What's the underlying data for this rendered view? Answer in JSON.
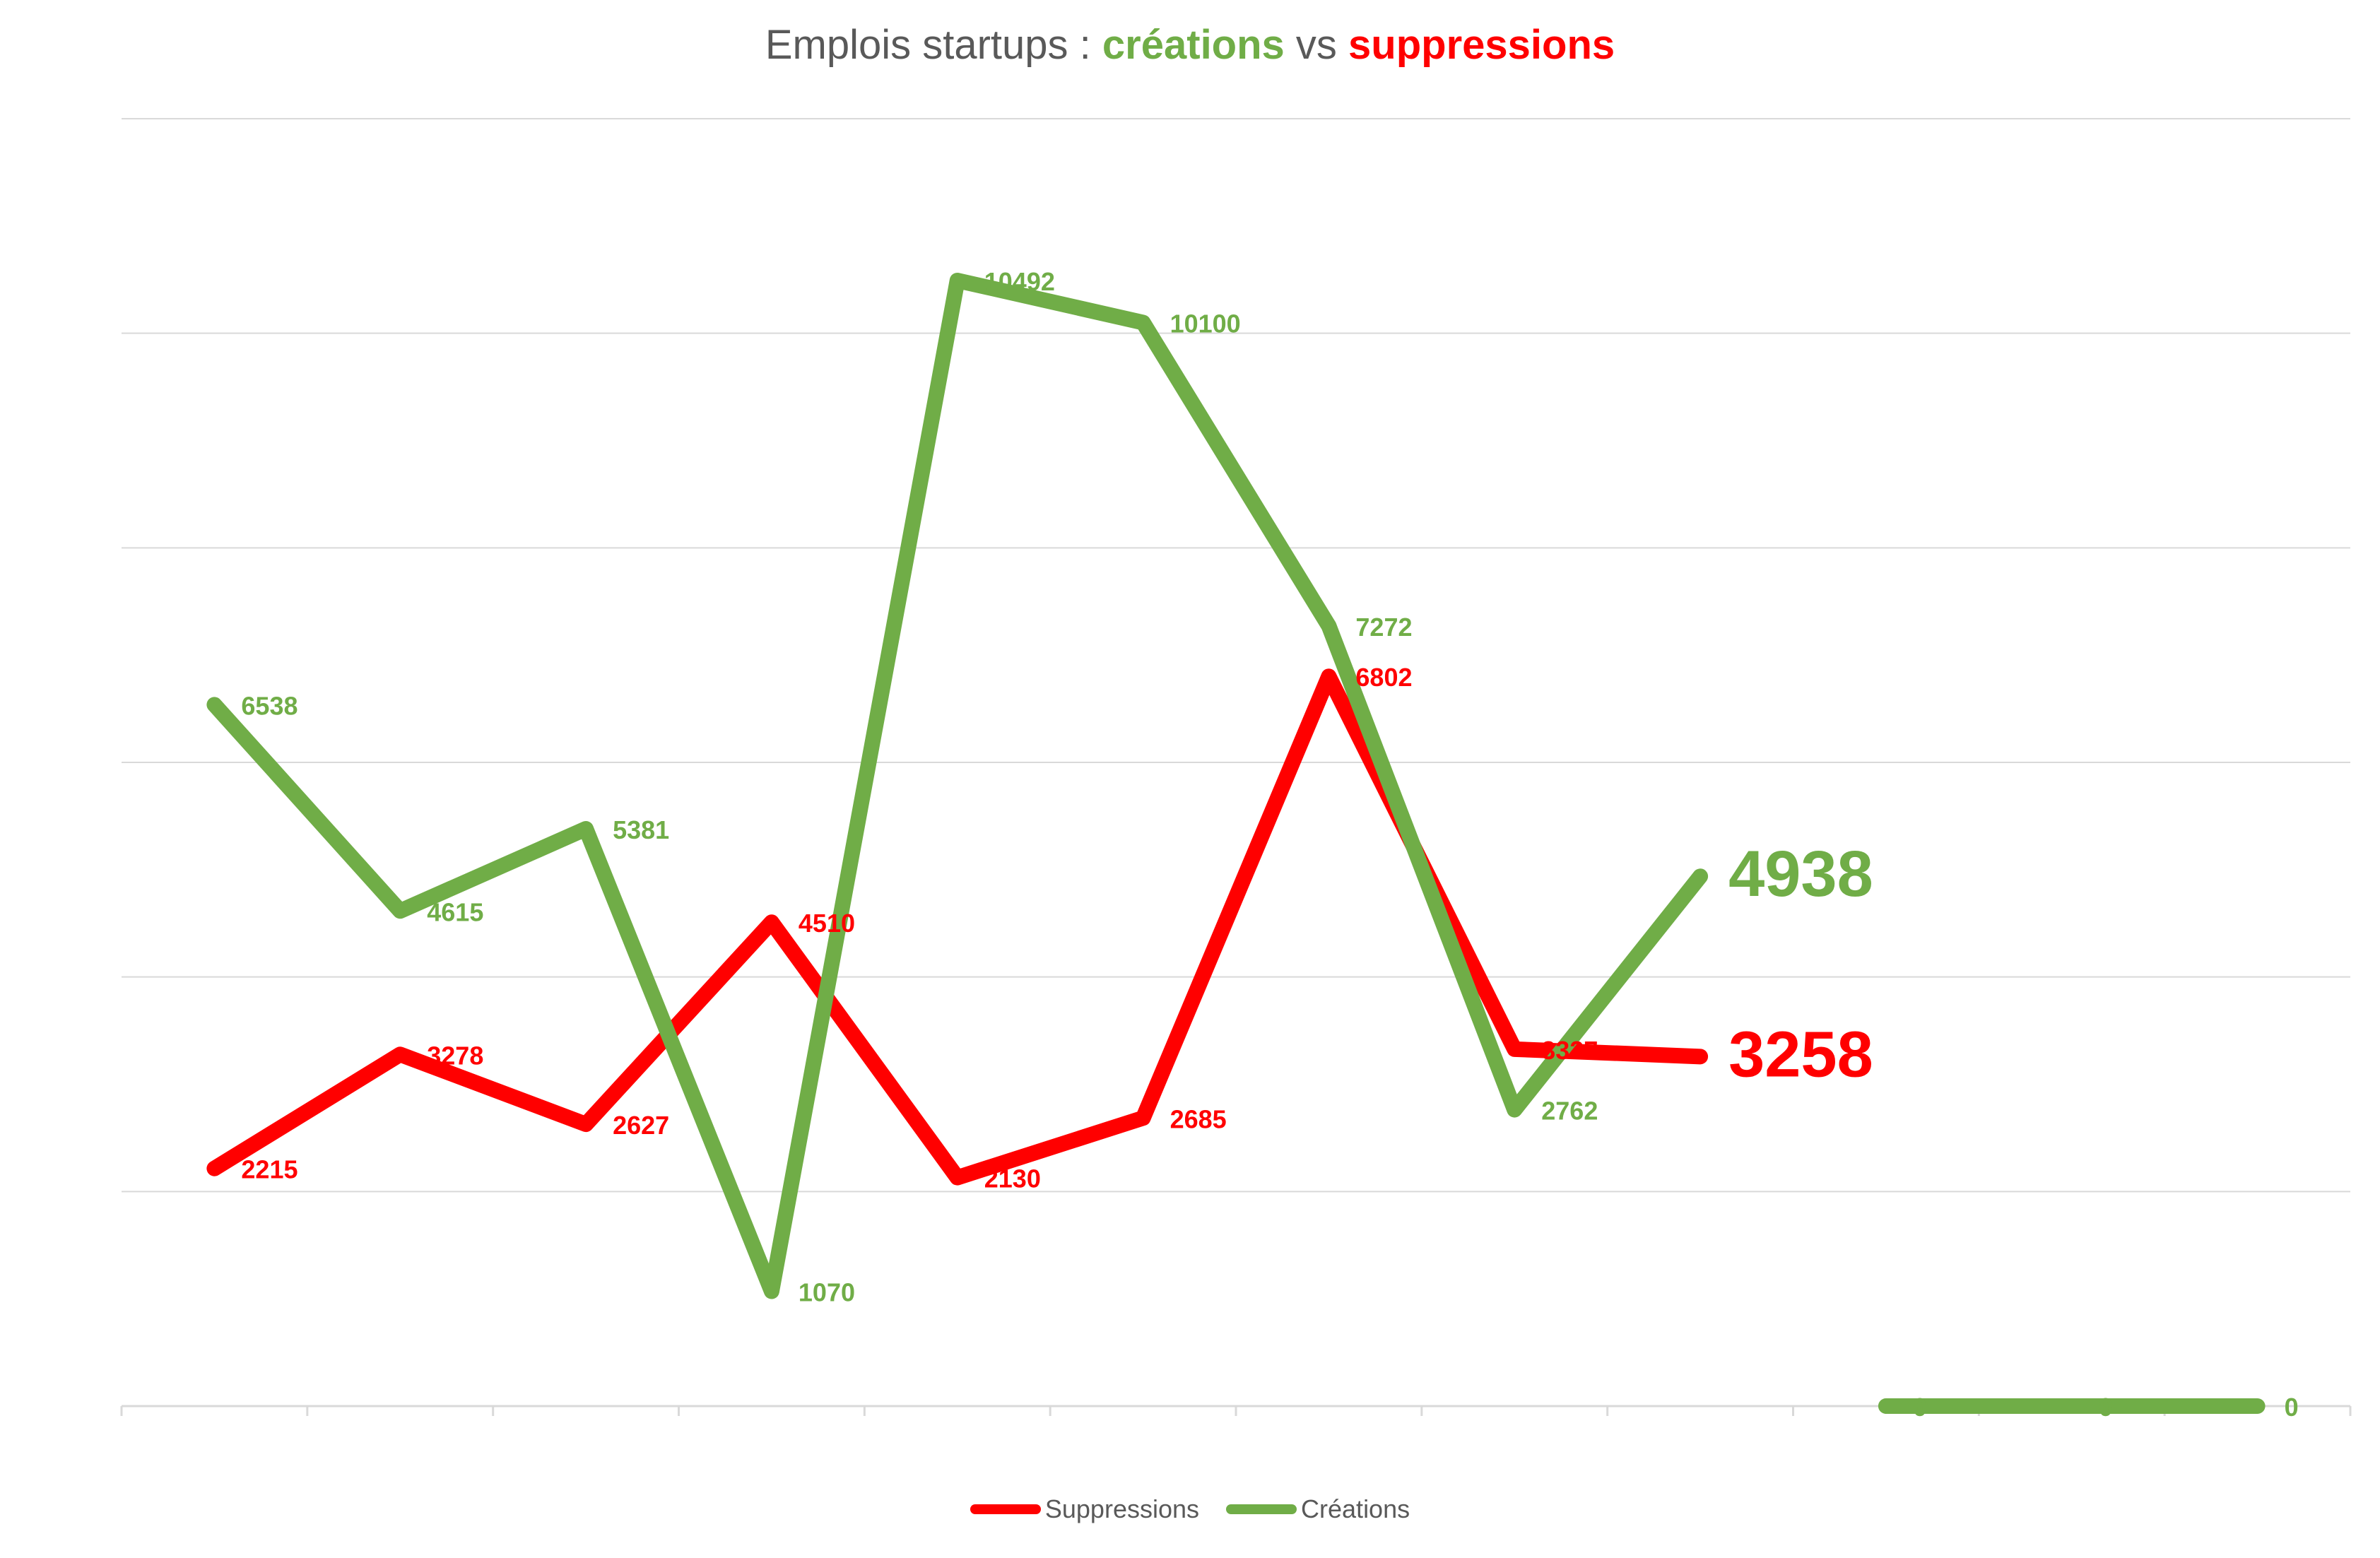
{
  "chart_data": {
    "type": "line",
    "title_parts": [
      {
        "text": "Emplois startups : ",
        "color": "#595959"
      },
      {
        "text": "créations",
        "color": "#70AD47"
      },
      {
        "text": " vs ",
        "color": "#595959"
      },
      {
        "text": "suppressions",
        "color": "#FF0000"
      }
    ],
    "ylim": [
      0,
      12000
    ],
    "grid": true,
    "legend_placement": "bottom",
    "num_points": 12,
    "series": [
      {
        "name": "Suppressions",
        "color": "#FF0000",
        "values": [
          2215,
          3278,
          2627,
          4510,
          2130,
          2685,
          6802,
          3327,
          3258,
          null,
          null,
          null
        ],
        "labels": [
          "2215",
          "3278",
          "2627",
          "4510",
          "2130",
          "2685",
          "6802",
          "3327",
          "3258",
          "",
          "",
          ""
        ],
        "emphasized_index": 8
      },
      {
        "name": "Créations",
        "color": "#70AD47",
        "values": [
          6538,
          4615,
          5381,
          1070,
          10492,
          10100,
          7272,
          2762,
          4938,
          0,
          0,
          0
        ],
        "labels": [
          "6538",
          "4615",
          "5381",
          "1070",
          "10492",
          "10100",
          "7272",
          "2762",
          "4938",
          "0",
          "0",
          "0"
        ],
        "emphasized_index": 8,
        "segment_break_after": 8
      }
    ]
  }
}
